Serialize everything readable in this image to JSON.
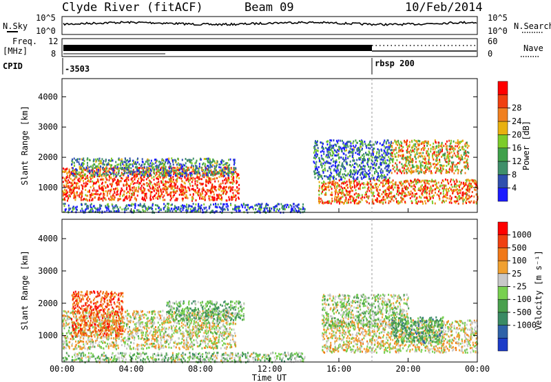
{
  "header": {
    "station": "Clyde River (fitACF)",
    "beam": "Beam 09",
    "date": "10/Feb/2014"
  },
  "aux_panels": {
    "nsky_label": "N.Sky",
    "nsky_ticks": [
      "10^5",
      "10^0"
    ],
    "nsearch_label": "N.Search",
    "nsearch_ticks": [
      "10^5",
      "10^0"
    ],
    "freq_label": "Freq.",
    "freq_unit": "[MHz]",
    "freq_ticks": [
      "12",
      "8"
    ],
    "nave_label": "Nave",
    "nave_ticks": [
      "60",
      "0"
    ],
    "cpid_label": "CPID",
    "cpid_segments": [
      {
        "label": "-3503",
        "start": "00:00"
      },
      {
        "label": "rbsp 200",
        "start": "18:00"
      }
    ]
  },
  "axes": {
    "xlabel": "Time UT",
    "xticks": [
      "00:00",
      "04:00",
      "08:00",
      "12:00",
      "16:00",
      "20:00",
      "00:00"
    ],
    "ylabel": "Slant Range [km]",
    "yticks": [
      "1000",
      "2000",
      "3000",
      "4000"
    ]
  },
  "colorbars": {
    "power": {
      "label": "Power [dB]",
      "ticks": [
        "4",
        "8",
        "12",
        "16",
        "20",
        "24",
        "28"
      ],
      "colors": [
        "#1c1cff",
        "#2f4fae",
        "#3f8f6a",
        "#3fa04a",
        "#7ccc2a",
        "#e8b010",
        "#f08020",
        "#f04010",
        "#ff0000"
      ]
    },
    "velocity": {
      "label": "Velocity [m s⁻¹]",
      "ticks": [
        "1000",
        "500",
        "100",
        "25",
        "-25",
        "-100",
        "-500",
        "-1000"
      ],
      "colors": [
        "#1c3cc8",
        "#2f62a8",
        "#3a8a64",
        "#4aa04e",
        "#78d050",
        "#c8c8c8",
        "#f0a030",
        "#f07818",
        "#f04010",
        "#ff0000"
      ]
    }
  },
  "chart_data": [
    {
      "type": "heatmap",
      "panel": "power",
      "x_range": [
        "00:00",
        "24:00"
      ],
      "ylim": [
        180,
        4600
      ],
      "cbar_range": [
        0,
        32
      ],
      "regions": [
        {
          "t0": 0.0,
          "t1": 10.2,
          "r0": 600,
          "r1": 1700,
          "power": 27
        },
        {
          "t0": 0.5,
          "t1": 10.0,
          "r0": 1400,
          "r1": 2000,
          "power": 10
        },
        {
          "t0": 14.8,
          "t1": 24.0,
          "r0": 500,
          "r1": 1300,
          "power": 24
        },
        {
          "t0": 14.5,
          "t1": 19.0,
          "r0": 1300,
          "r1": 2600,
          "power": 8
        },
        {
          "t0": 19.0,
          "t1": 23.5,
          "r0": 1500,
          "r1": 2600,
          "power": 20
        },
        {
          "t0": 0.0,
          "t1": 14.0,
          "r0": 200,
          "r1": 500,
          "power": 6
        }
      ]
    },
    {
      "type": "heatmap",
      "panel": "velocity",
      "x_range": [
        "00:00",
        "24:00"
      ],
      "ylim": [
        180,
        4600
      ],
      "cbar_range": [
        -1000,
        1000
      ],
      "regions": [
        {
          "t0": 0.0,
          "t1": 10.0,
          "r0": 600,
          "r1": 1800,
          "velocity": 100
        },
        {
          "t0": 0.5,
          "t1": 3.5,
          "r0": 1000,
          "r1": 2400,
          "velocity": 600
        },
        {
          "t0": 6.0,
          "t1": 10.5,
          "r0": 1500,
          "r1": 2100,
          "velocity": -200
        },
        {
          "t0": 15.0,
          "t1": 24.0,
          "r0": 500,
          "r1": 1500,
          "velocity": 150
        },
        {
          "t0": 15.0,
          "t1": 20.0,
          "r0": 1300,
          "r1": 2300,
          "velocity": -50
        },
        {
          "t0": 19.0,
          "t1": 22.0,
          "r0": 800,
          "r1": 1600,
          "velocity": -300
        },
        {
          "t0": 0.0,
          "t1": 14.0,
          "r0": 200,
          "r1": 500,
          "velocity": -100
        }
      ]
    }
  ]
}
